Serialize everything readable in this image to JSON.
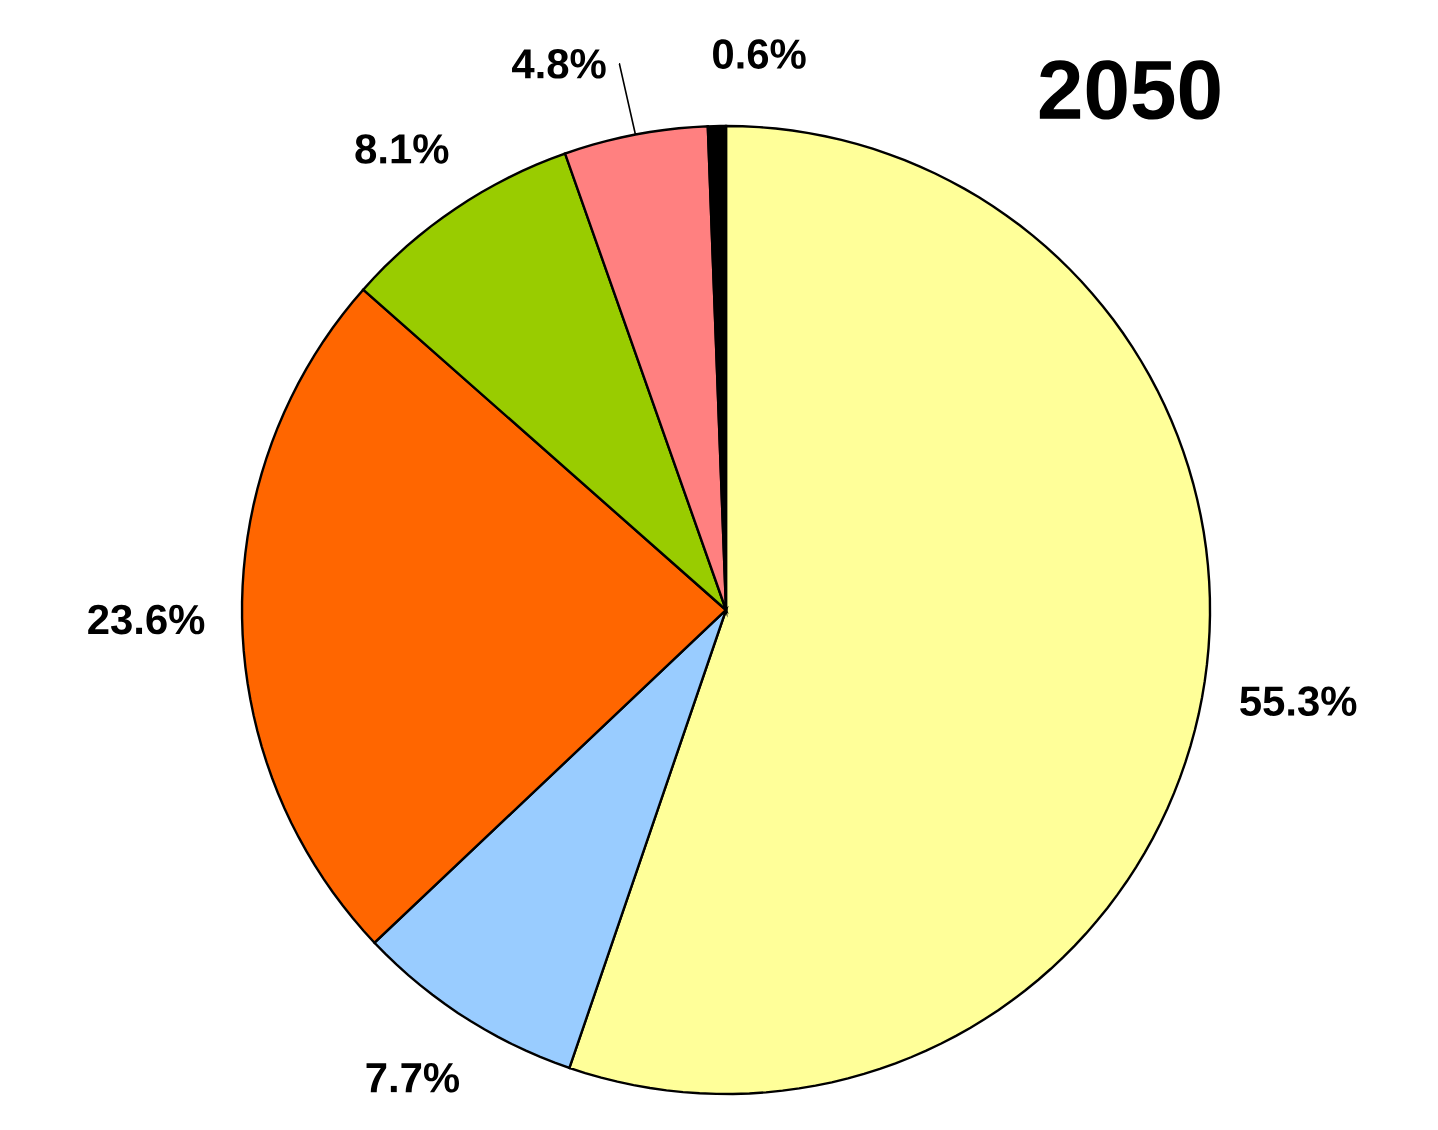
{
  "chart_data": {
    "type": "pie",
    "title": "2050",
    "categories": [
      null,
      null,
      null,
      null,
      null,
      null
    ],
    "values": [
      55.3,
      7.7,
      23.6,
      8.1,
      4.8,
      0.6
    ],
    "colors": [
      "#ffff99",
      "#99ccff",
      "#ff6600",
      "#99cc00",
      "#ff8080",
      "#000000"
    ],
    "value_labels": [
      "55.3%",
      "7.7%",
      "23.6%",
      "8.1%",
      "4.8%",
      "0.6%"
    ]
  }
}
